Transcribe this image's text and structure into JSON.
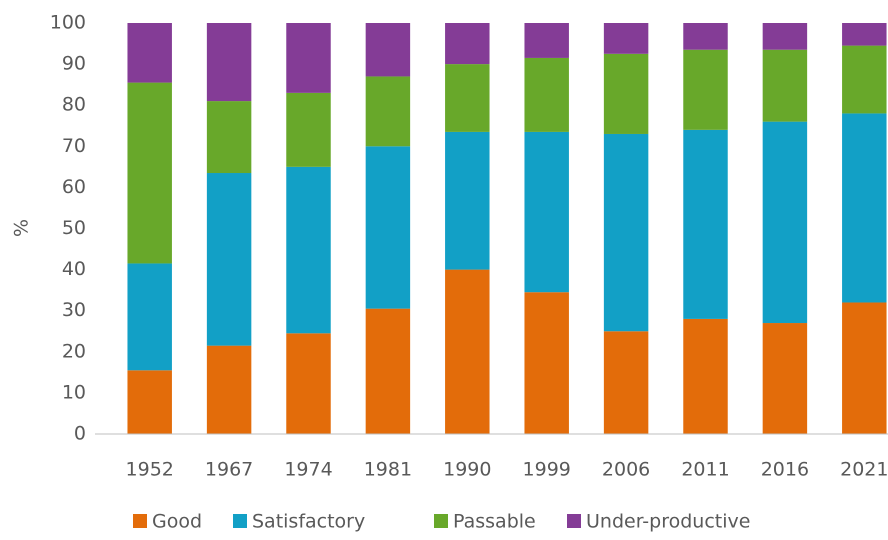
{
  "chart_data": {
    "type": "stacked_bar",
    "y_label": "%",
    "categories": [
      "1952",
      "1967",
      "1974",
      "1981",
      "1990",
      "1999",
      "2006",
      "2011",
      "2016",
      "2021"
    ],
    "series": [
      {
        "name": "Good",
        "color": "#e36c0a",
        "values": [
          15.5,
          21.5,
          24.5,
          30.5,
          40,
          34.5,
          25,
          28,
          27,
          32
        ]
      },
      {
        "name": "Satisfactory",
        "color": "#12a0c6",
        "values": [
          26,
          42,
          40.5,
          39.5,
          33.5,
          39,
          48,
          46,
          49,
          46
        ]
      },
      {
        "name": "Passable",
        "color": "#68a82a",
        "values": [
          44,
          17.5,
          18,
          17,
          16.5,
          18,
          19.5,
          19.5,
          17.5,
          16.5
        ]
      },
      {
        "name": "Under-productive",
        "color": "#843c96",
        "values": [
          14.5,
          19,
          17,
          13,
          10,
          8.5,
          7.5,
          6.5,
          6.5,
          5.5
        ]
      }
    ],
    "ylim": [
      0,
      100
    ],
    "yticks": [
      0,
      10,
      20,
      30,
      40,
      50,
      60,
      70,
      80,
      90,
      100
    ],
    "grid": false,
    "legend": "bottom"
  }
}
